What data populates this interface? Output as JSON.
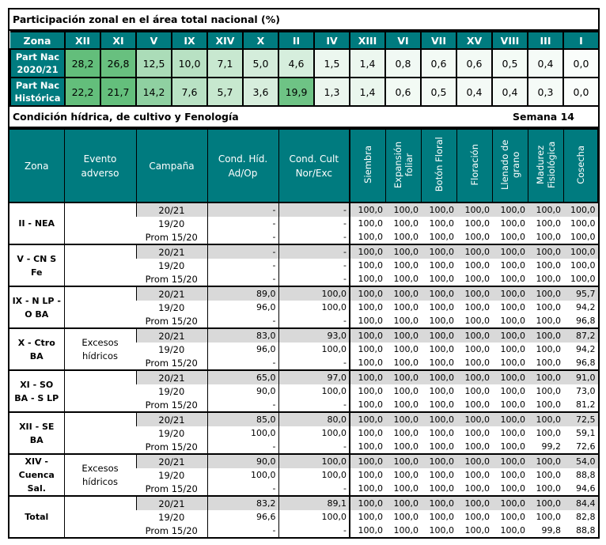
{
  "participacion": {
    "title": "Participación zonal en el área total nacional (%)",
    "zona_label": "Zona",
    "zones": [
      "XII",
      "XI",
      "V",
      "IX",
      "XIV",
      "X",
      "II",
      "IV",
      "XIII",
      "VI",
      "VII",
      "XV",
      "VIII",
      "III",
      "I"
    ],
    "rows": [
      {
        "label": [
          "Part Nac",
          "2020/21"
        ],
        "values": [
          "28,2",
          "26,8",
          "12,5",
          "10,0",
          "7,1",
          "5,0",
          "4,6",
          "1,5",
          "1,4",
          "0,8",
          "0,6",
          "0,6",
          "0,5",
          "0,4",
          "0,0"
        ]
      },
      {
        "label": [
          "Part Nac",
          "Histórica"
        ],
        "values": [
          "22,2",
          "21,7",
          "14,2",
          "7,6",
          "5,7",
          "3,6",
          "19,9",
          "1,3",
          "1,4",
          "0,6",
          "0,5",
          "0,4",
          "0,4",
          "0,3",
          "0,0"
        ]
      }
    ],
    "scale_colors": {
      "low": "#ffffff",
      "high": "#63be7b"
    }
  },
  "condicion": {
    "title": "Condición hídrica, de cultivo y Fenología",
    "week": "Semana 14",
    "headers": [
      "Zona",
      "Evento adverso",
      "Campaña",
      "Cond. Híd. Ad/Op",
      "Cond. Cult Nor/Exc",
      "Siembra",
      "Expansión foliar",
      "Botón Floral",
      "Floración",
      "Llenado de grano",
      "Madurez Fisiológica",
      "Cosecha"
    ],
    "header_color": "#007b7f",
    "groups": [
      {
        "zone": "II - NEA",
        "event": "",
        "rows": [
          [
            "20/21",
            "-",
            "-",
            "100,0",
            "100,0",
            "100,0",
            "100,0",
            "100,0",
            "100,0",
            "100,0"
          ],
          [
            "19/20",
            "-",
            "-",
            "100,0",
            "100,0",
            "100,0",
            "100,0",
            "100,0",
            "100,0",
            "100,0"
          ],
          [
            "Prom 15/20",
            "-",
            "-",
            "100,0",
            "100,0",
            "100,0",
            "100,0",
            "100,0",
            "100,0",
            "100,0"
          ]
        ]
      },
      {
        "zone": "V - CN S Fe",
        "event": "",
        "rows": [
          [
            "20/21",
            "-",
            "-",
            "100,0",
            "100,0",
            "100,0",
            "100,0",
            "100,0",
            "100,0",
            "100,0"
          ],
          [
            "19/20",
            "-",
            "-",
            "100,0",
            "100,0",
            "100,0",
            "100,0",
            "100,0",
            "100,0",
            "100,0"
          ],
          [
            "Prom 15/20",
            "-",
            "-",
            "100,0",
            "100,0",
            "100,0",
            "100,0",
            "100,0",
            "100,0",
            "100,0"
          ]
        ]
      },
      {
        "zone": "IX - N LP - O BA",
        "event": "",
        "rows": [
          [
            "20/21",
            "89,0",
            "100,0",
            "100,0",
            "100,0",
            "100,0",
            "100,0",
            "100,0",
            "100,0",
            "95,7"
          ],
          [
            "19/20",
            "96,0",
            "100,0",
            "100,0",
            "100,0",
            "100,0",
            "100,0",
            "100,0",
            "100,0",
            "94,2"
          ],
          [
            "Prom 15/20",
            "-",
            "-",
            "100,0",
            "100,0",
            "100,0",
            "100,0",
            "100,0",
            "100,0",
            "96,8"
          ]
        ]
      },
      {
        "zone": "X - Ctro BA",
        "event": "Excesos hídricos",
        "rows": [
          [
            "20/21",
            "83,0",
            "93,0",
            "100,0",
            "100,0",
            "100,0",
            "100,0",
            "100,0",
            "100,0",
            "87,2"
          ],
          [
            "19/20",
            "96,0",
            "100,0",
            "100,0",
            "100,0",
            "100,0",
            "100,0",
            "100,0",
            "100,0",
            "94,2"
          ],
          [
            "Prom 15/20",
            "-",
            "-",
            "100,0",
            "100,0",
            "100,0",
            "100,0",
            "100,0",
            "100,0",
            "96,8"
          ]
        ]
      },
      {
        "zone": "XI - SO BA - S LP",
        "event": "",
        "rows": [
          [
            "20/21",
            "65,0",
            "97,0",
            "100,0",
            "100,0",
            "100,0",
            "100,0",
            "100,0",
            "100,0",
            "91,0"
          ],
          [
            "19/20",
            "90,0",
            "100,0",
            "100,0",
            "100,0",
            "100,0",
            "100,0",
            "100,0",
            "100,0",
            "73,0"
          ],
          [
            "Prom 15/20",
            "-",
            "-",
            "100,0",
            "100,0",
            "100,0",
            "100,0",
            "100,0",
            "100,0",
            "81,2"
          ]
        ]
      },
      {
        "zone": "XII - SE BA",
        "event": "",
        "rows": [
          [
            "20/21",
            "85,0",
            "80,0",
            "100,0",
            "100,0",
            "100,0",
            "100,0",
            "100,0",
            "100,0",
            "72,5"
          ],
          [
            "19/20",
            "100,0",
            "100,0",
            "100,0",
            "100,0",
            "100,0",
            "100,0",
            "100,0",
            "100,0",
            "59,1"
          ],
          [
            "Prom 15/20",
            "-",
            "-",
            "100,0",
            "100,0",
            "100,0",
            "100,0",
            "100,0",
            "99,2",
            "72,6"
          ]
        ]
      },
      {
        "zone": "XIV - Cuenca Sal.",
        "event": "Excesos hídricos",
        "rows": [
          [
            "20/21",
            "90,0",
            "100,0",
            "100,0",
            "100,0",
            "100,0",
            "100,0",
            "100,0",
            "100,0",
            "54,0"
          ],
          [
            "19/20",
            "100,0",
            "100,0",
            "100,0",
            "100,0",
            "100,0",
            "100,0",
            "100,0",
            "100,0",
            "88,8"
          ],
          [
            "Prom 15/20",
            "-",
            "-",
            "100,0",
            "100,0",
            "100,0",
            "100,0",
            "100,0",
            "100,0",
            "94,6"
          ]
        ]
      },
      {
        "zone": "Total",
        "event": "",
        "rows": [
          [
            "20/21",
            "83,2",
            "89,1",
            "100,0",
            "100,0",
            "100,0",
            "100,0",
            "100,0",
            "100,0",
            "84,4"
          ],
          [
            "19/20",
            "96,6",
            "100,0",
            "100,0",
            "100,0",
            "100,0",
            "100,0",
            "100,0",
            "100,0",
            "82,8"
          ],
          [
            "Prom 15/20",
            "-",
            "-",
            "100,0",
            "100,0",
            "100,0",
            "100,0",
            "100,0",
            "99,8",
            "88,8"
          ]
        ]
      }
    ]
  }
}
